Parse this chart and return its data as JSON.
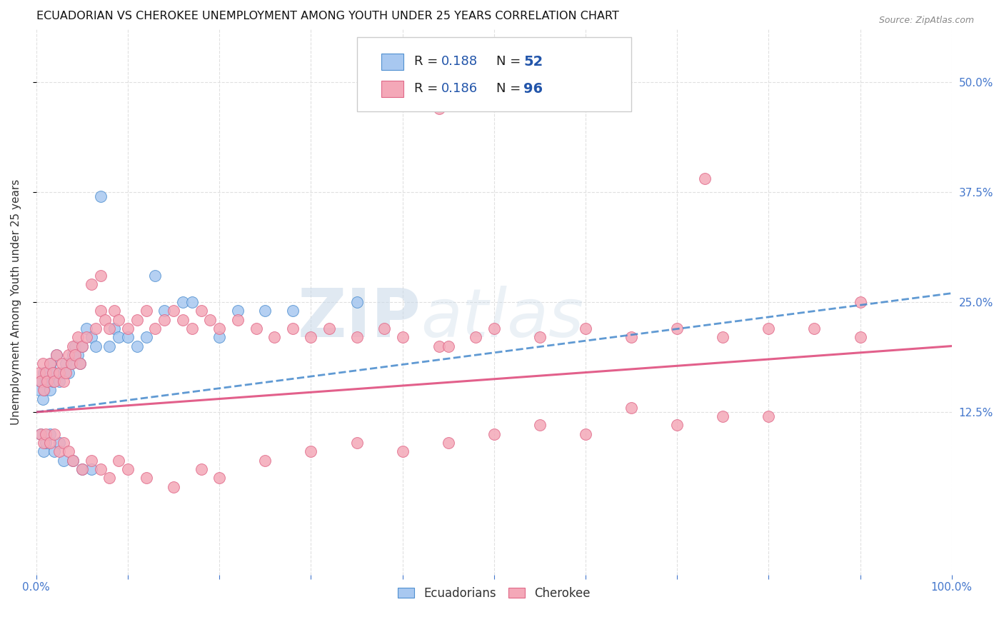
{
  "title": "ECUADORIAN VS CHEROKEE UNEMPLOYMENT AMONG YOUTH UNDER 25 YEARS CORRELATION CHART",
  "source": "Source: ZipAtlas.com",
  "ylabel": "Unemployment Among Youth under 25 years",
  "xmin": 0.0,
  "xmax": 1.0,
  "ymin": -0.06,
  "ymax": 0.56,
  "ecuadorian_color": "#a8c8f0",
  "cherokee_color": "#f4a8b8",
  "ecuadorian_edge": "#5090d0",
  "cherokee_edge": "#e06888",
  "ecuadorian_R": 0.188,
  "ecuadorian_N": 52,
  "cherokee_R": 0.186,
  "cherokee_N": 96,
  "watermark_zip": "ZIP",
  "watermark_atlas": "atlas",
  "legend_ecuadorians": "Ecuadorians",
  "legend_cherokee": "Cherokee",
  "trend_ecuadorian_color": "#4488cc",
  "trend_cherokee_color": "#dd4477",
  "legend_R_color": "#2255aa",
  "legend_N_color": "#2255aa",
  "x_tick_labels": [
    "0.0%",
    "",
    "",
    "",
    "",
    "",
    "",
    "",
    "",
    "",
    "100.0%"
  ],
  "y_tick_vals": [
    0.125,
    0.25,
    0.375,
    0.5
  ],
  "y_tick_labels": [
    "12.5%",
    "25.0%",
    "37.5%",
    "50.0%"
  ],
  "ecu_x": [
    0.003,
    0.005,
    0.007,
    0.008,
    0.009,
    0.01,
    0.012,
    0.015,
    0.016,
    0.018,
    0.02,
    0.022,
    0.025,
    0.027,
    0.03,
    0.032,
    0.035,
    0.038,
    0.04,
    0.042,
    0.045,
    0.048,
    0.05,
    0.055,
    0.06,
    0.065,
    0.07,
    0.08,
    0.085,
    0.09,
    0.1,
    0.11,
    0.12,
    0.13,
    0.14,
    0.16,
    0.17,
    0.2,
    0.22,
    0.25,
    0.005,
    0.008,
    0.01,
    0.015,
    0.02,
    0.025,
    0.03,
    0.04,
    0.05,
    0.06,
    0.28,
    0.35
  ],
  "ecu_y": [
    0.15,
    0.16,
    0.14,
    0.17,
    0.15,
    0.16,
    0.17,
    0.15,
    0.18,
    0.16,
    0.17,
    0.19,
    0.16,
    0.17,
    0.17,
    0.18,
    0.17,
    0.18,
    0.19,
    0.2,
    0.19,
    0.18,
    0.2,
    0.22,
    0.21,
    0.2,
    0.37,
    0.2,
    0.22,
    0.21,
    0.21,
    0.2,
    0.21,
    0.28,
    0.24,
    0.25,
    0.25,
    0.21,
    0.24,
    0.24,
    0.1,
    0.08,
    0.09,
    0.1,
    0.08,
    0.09,
    0.07,
    0.07,
    0.06,
    0.06,
    0.24,
    0.25
  ],
  "cher_x": [
    0.003,
    0.005,
    0.007,
    0.008,
    0.01,
    0.012,
    0.015,
    0.018,
    0.02,
    0.022,
    0.025,
    0.028,
    0.03,
    0.032,
    0.035,
    0.038,
    0.04,
    0.042,
    0.045,
    0.048,
    0.05,
    0.055,
    0.06,
    0.065,
    0.07,
    0.075,
    0.08,
    0.085,
    0.09,
    0.1,
    0.11,
    0.12,
    0.13,
    0.14,
    0.15,
    0.16,
    0.17,
    0.18,
    0.19,
    0.2,
    0.22,
    0.24,
    0.26,
    0.28,
    0.3,
    0.32,
    0.35,
    0.38,
    0.4,
    0.44,
    0.48,
    0.5,
    0.55,
    0.6,
    0.65,
    0.7,
    0.75,
    0.8,
    0.85,
    0.9,
    0.005,
    0.008,
    0.01,
    0.015,
    0.02,
    0.025,
    0.03,
    0.035,
    0.04,
    0.05,
    0.06,
    0.07,
    0.08,
    0.09,
    0.1,
    0.12,
    0.15,
    0.18,
    0.2,
    0.25,
    0.3,
    0.35,
    0.4,
    0.45,
    0.5,
    0.55,
    0.6,
    0.65,
    0.7,
    0.75,
    0.8,
    0.73,
    0.44,
    0.07,
    0.45,
    0.9
  ],
  "cher_y": [
    0.17,
    0.16,
    0.18,
    0.15,
    0.17,
    0.16,
    0.18,
    0.17,
    0.16,
    0.19,
    0.17,
    0.18,
    0.16,
    0.17,
    0.19,
    0.18,
    0.2,
    0.19,
    0.21,
    0.18,
    0.2,
    0.21,
    0.27,
    0.22,
    0.24,
    0.23,
    0.22,
    0.24,
    0.23,
    0.22,
    0.23,
    0.24,
    0.22,
    0.23,
    0.24,
    0.23,
    0.22,
    0.24,
    0.23,
    0.22,
    0.23,
    0.22,
    0.21,
    0.22,
    0.21,
    0.22,
    0.21,
    0.22,
    0.21,
    0.2,
    0.21,
    0.22,
    0.21,
    0.22,
    0.21,
    0.22,
    0.21,
    0.22,
    0.22,
    0.21,
    0.1,
    0.09,
    0.1,
    0.09,
    0.1,
    0.08,
    0.09,
    0.08,
    0.07,
    0.06,
    0.07,
    0.06,
    0.05,
    0.07,
    0.06,
    0.05,
    0.04,
    0.06,
    0.05,
    0.07,
    0.08,
    0.09,
    0.08,
    0.09,
    0.1,
    0.11,
    0.1,
    0.13,
    0.11,
    0.12,
    0.12,
    0.39,
    0.47,
    0.28,
    0.2,
    0.25
  ]
}
